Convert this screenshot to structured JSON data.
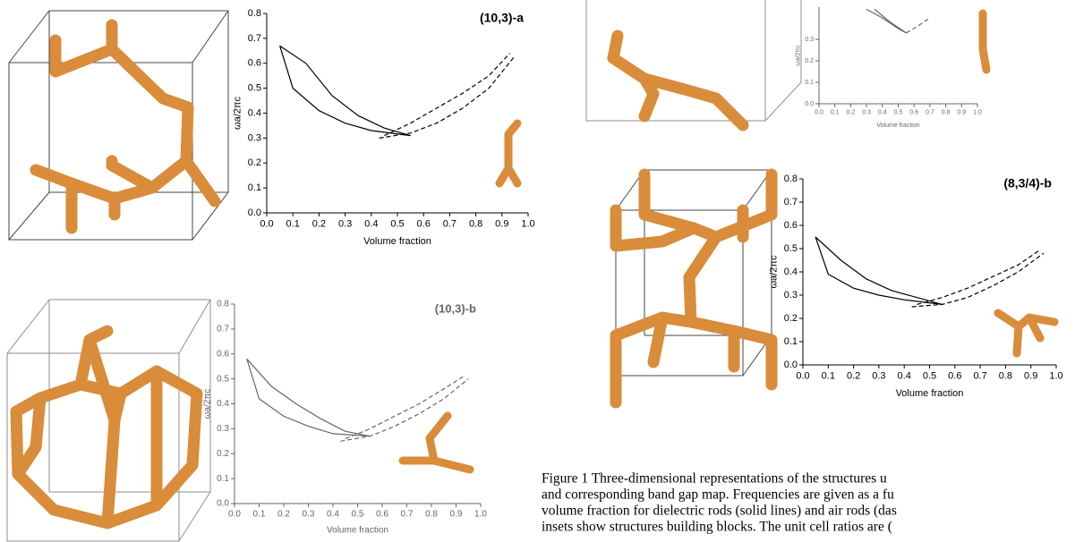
{
  "chart_data": [
    {
      "type": "line",
      "title": "(10,3)-a",
      "xlabel": "Volume fraction",
      "ylabel": "ωa/2πc",
      "color": "#000000",
      "xlim": [
        0,
        1
      ],
      "ylim": [
        0,
        0.8
      ],
      "xticks": [
        {
          "value": 0,
          "label": "0.0"
        },
        0.1,
        0.2,
        0.3,
        0.4,
        0.5,
        0.6,
        0.7,
        0.8,
        0.9,
        {
          "value": 1,
          "label": "1.0"
        }
      ],
      "yticks": [
        {
          "value": 0,
          "label": "0.0"
        },
        0.1,
        0.2,
        0.3,
        0.4,
        0.5,
        0.6,
        0.7,
        0.8
      ],
      "lines": [
        {
          "style": "solid",
          "x": [
            0.05,
            0.15,
            0.25,
            0.35,
            0.45,
            0.55
          ],
          "y": [
            0.67,
            0.6,
            0.47,
            0.39,
            0.34,
            0.31
          ]
        },
        {
          "style": "solid",
          "x": [
            0.05,
            0.1,
            0.2,
            0.3,
            0.4,
            0.55
          ],
          "y": [
            0.67,
            0.5,
            0.41,
            0.36,
            0.33,
            0.31
          ]
        },
        {
          "style": "dashed",
          "x": [
            0.45,
            0.55,
            0.65,
            0.75,
            0.85,
            0.93
          ],
          "y": [
            0.31,
            0.36,
            0.42,
            0.48,
            0.55,
            0.64
          ]
        },
        {
          "style": "dashed",
          "x": [
            0.43,
            0.55,
            0.65,
            0.75,
            0.85,
            0.95
          ],
          "y": [
            0.3,
            0.32,
            0.36,
            0.42,
            0.5,
            0.63
          ]
        }
      ]
    },
    {
      "type": "line",
      "title": "(10,3)-b",
      "xlabel": "Volume fraction",
      "ylabel": "ωa/2πc",
      "color": "#666666",
      "xlim": [
        0,
        1
      ],
      "ylim": [
        0,
        0.8
      ],
      "xticks": [
        {
          "value": 0,
          "label": "0.0"
        },
        0.1,
        0.2,
        0.3,
        0.4,
        0.5,
        0.6,
        0.7,
        0.8,
        0.9,
        {
          "value": 1,
          "label": "1.0"
        }
      ],
      "yticks": [
        {
          "value": 0,
          "label": "0.0"
        },
        0.1,
        0.2,
        0.3,
        0.4,
        0.5,
        0.6,
        0.7,
        0.8
      ],
      "lines": [
        {
          "style": "solid",
          "x": [
            0.05,
            0.15,
            0.25,
            0.35,
            0.45,
            0.55
          ],
          "y": [
            0.58,
            0.47,
            0.4,
            0.34,
            0.29,
            0.27
          ]
        },
        {
          "style": "solid",
          "x": [
            0.05,
            0.1,
            0.2,
            0.3,
            0.4,
            0.55
          ],
          "y": [
            0.58,
            0.42,
            0.35,
            0.31,
            0.28,
            0.27
          ]
        },
        {
          "style": "dashed",
          "x": [
            0.45,
            0.55,
            0.65,
            0.75,
            0.85,
            0.93
          ],
          "y": [
            0.26,
            0.3,
            0.35,
            0.4,
            0.46,
            0.51
          ]
        },
        {
          "style": "dashed",
          "x": [
            0.43,
            0.55,
            0.65,
            0.75,
            0.85,
            0.95
          ],
          "y": [
            0.25,
            0.27,
            0.31,
            0.36,
            0.42,
            0.5
          ]
        }
      ]
    },
    {
      "type": "line",
      "xlabel": "Volume fraction",
      "ylabel": "ωa/2πc",
      "color": "#666666",
      "xlim": [
        0,
        1
      ],
      "ylim": [
        0,
        0.45
      ],
      "xticks": [
        {
          "value": 0,
          "label": "0.0"
        },
        0.1,
        0.2,
        0.3,
        0.4,
        0.5,
        0.6,
        0.7,
        0.8,
        0.9,
        {
          "value": 1,
          "label": "1.0"
        }
      ],
      "yticks": [
        {
          "value": 0,
          "label": "0.0"
        },
        0.1,
        0.2,
        0.3
      ],
      "lines": [
        {
          "style": "solid",
          "x": [
            0.3,
            0.4,
            0.5,
            0.55
          ],
          "y": [
            0.44,
            0.4,
            0.35,
            0.33
          ]
        },
        {
          "style": "solid",
          "x": [
            0.35,
            0.45,
            0.55
          ],
          "y": [
            0.44,
            0.38,
            0.33
          ]
        },
        {
          "style": "dashed",
          "x": [
            0.55,
            0.62,
            0.7
          ],
          "y": [
            0.33,
            0.36,
            0.4
          ]
        }
      ]
    },
    {
      "type": "line",
      "title": "(8,3/4)-b",
      "xlabel": "Volume fraction",
      "ylabel": "ωa/2πc",
      "color": "#000000",
      "xlim": [
        0,
        1
      ],
      "ylim": [
        0,
        0.8
      ],
      "xticks": [
        {
          "value": 0,
          "label": "0.0"
        },
        0.1,
        0.2,
        0.3,
        0.4,
        0.5,
        0.6,
        0.7,
        0.8,
        0.9,
        {
          "value": 1,
          "label": "1.0"
        }
      ],
      "yticks": [
        {
          "value": 0,
          "label": "0.0"
        },
        0.1,
        0.2,
        0.3,
        0.4,
        0.5,
        0.6,
        0.7,
        0.8
      ],
      "lines": [
        {
          "style": "solid",
          "x": [
            0.05,
            0.15,
            0.25,
            0.35,
            0.45,
            0.55
          ],
          "y": [
            0.55,
            0.45,
            0.37,
            0.32,
            0.29,
            0.26
          ]
        },
        {
          "style": "solid",
          "x": [
            0.05,
            0.1,
            0.2,
            0.3,
            0.4,
            0.55
          ],
          "y": [
            0.55,
            0.39,
            0.33,
            0.3,
            0.28,
            0.26
          ]
        },
        {
          "style": "dashed",
          "x": [
            0.45,
            0.55,
            0.65,
            0.75,
            0.85,
            0.93
          ],
          "y": [
            0.26,
            0.29,
            0.33,
            0.38,
            0.43,
            0.49
          ]
        },
        {
          "style": "dashed",
          "x": [
            0.43,
            0.55,
            0.65,
            0.75,
            0.85,
            0.95
          ],
          "y": [
            0.25,
            0.26,
            0.29,
            0.34,
            0.4,
            0.48
          ]
        }
      ]
    }
  ],
  "caption": {
    "lines": [
      "Figure 1 Three-dimensional representations of the structures u",
      "and corresponding band gap map. Frequencies are given as a fu",
      "volume fraction for dielectric rods (solid lines) and air rods (das",
      "insets show structures building blocks. The unit cell ratios are ("
    ]
  }
}
